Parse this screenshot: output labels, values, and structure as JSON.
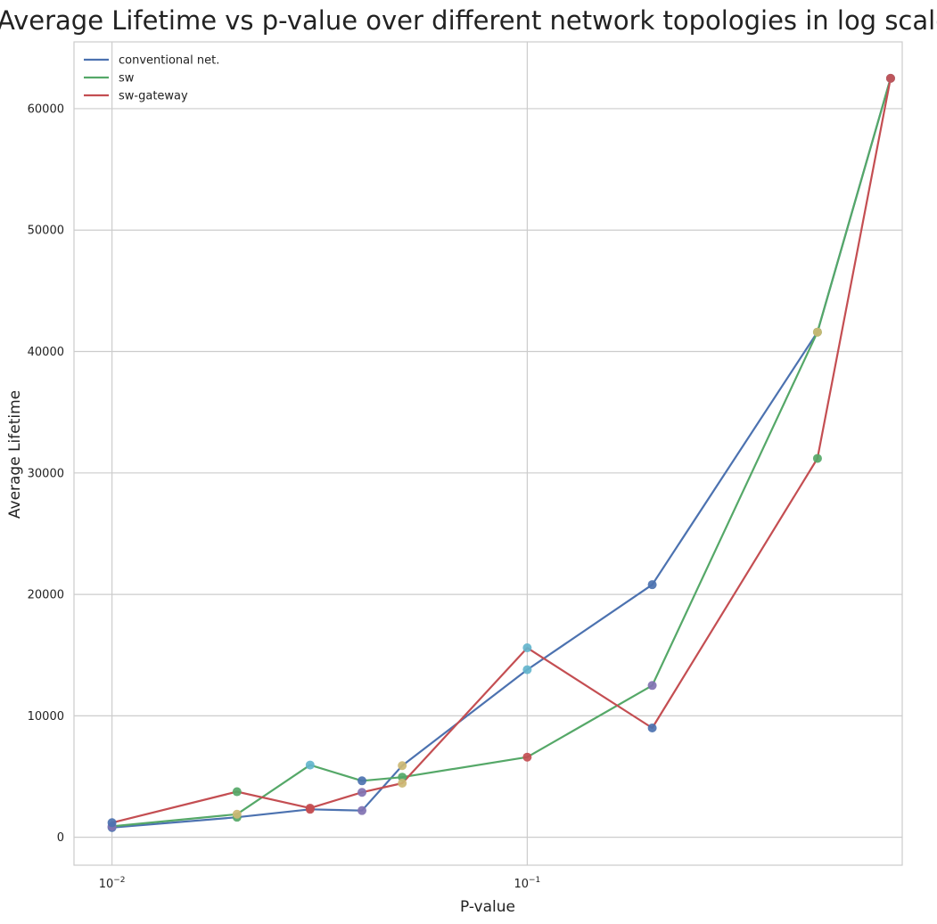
{
  "chart_data": {
    "type": "line",
    "title": "Average Lifetime vs p-value over different network topologies in log scale",
    "xlabel": "P-value",
    "ylabel": "Average Lifetime",
    "xscale": "log",
    "xlim": [
      0.0081,
      0.8
    ],
    "ylim": [
      -2300,
      65500
    ],
    "x": [
      0.01,
      0.02,
      0.03,
      0.04,
      0.05,
      0.1,
      0.2,
      0.5,
      0.75
    ],
    "xticks": [
      {
        "value": 0.01,
        "base": "10",
        "exp": "−2"
      },
      {
        "value": 0.1,
        "base": "10",
        "exp": "−1"
      }
    ],
    "yticks": [
      0,
      10000,
      20000,
      30000,
      40000,
      50000,
      60000
    ],
    "ytick_labels": [
      "0",
      "10000",
      "20000",
      "30000",
      "40000",
      "50000",
      "60000"
    ],
    "grid": true,
    "legend_position": "top-left",
    "series": [
      {
        "name": "conventional net.",
        "color": "#4c72b0",
        "values": [
          800,
          1650,
          2300,
          2200,
          5900,
          13800,
          20800,
          41600,
          62500
        ]
      },
      {
        "name": "sw",
        "color": "#55a868",
        "values": [
          900,
          1900,
          5950,
          4650,
          4950,
          6600,
          12500,
          41600,
          62500
        ]
      },
      {
        "name": "sw-gateway",
        "color": "#c44e52",
        "values": [
          1200,
          3750,
          2400,
          3700,
          4450,
          15600,
          9000,
          31200,
          62500
        ]
      }
    ],
    "marker_palette": [
      "#4c72b0",
      "#55a868",
      "#c44e52",
      "#8172b2",
      "#ccb974",
      "#64b5cd"
    ]
  }
}
